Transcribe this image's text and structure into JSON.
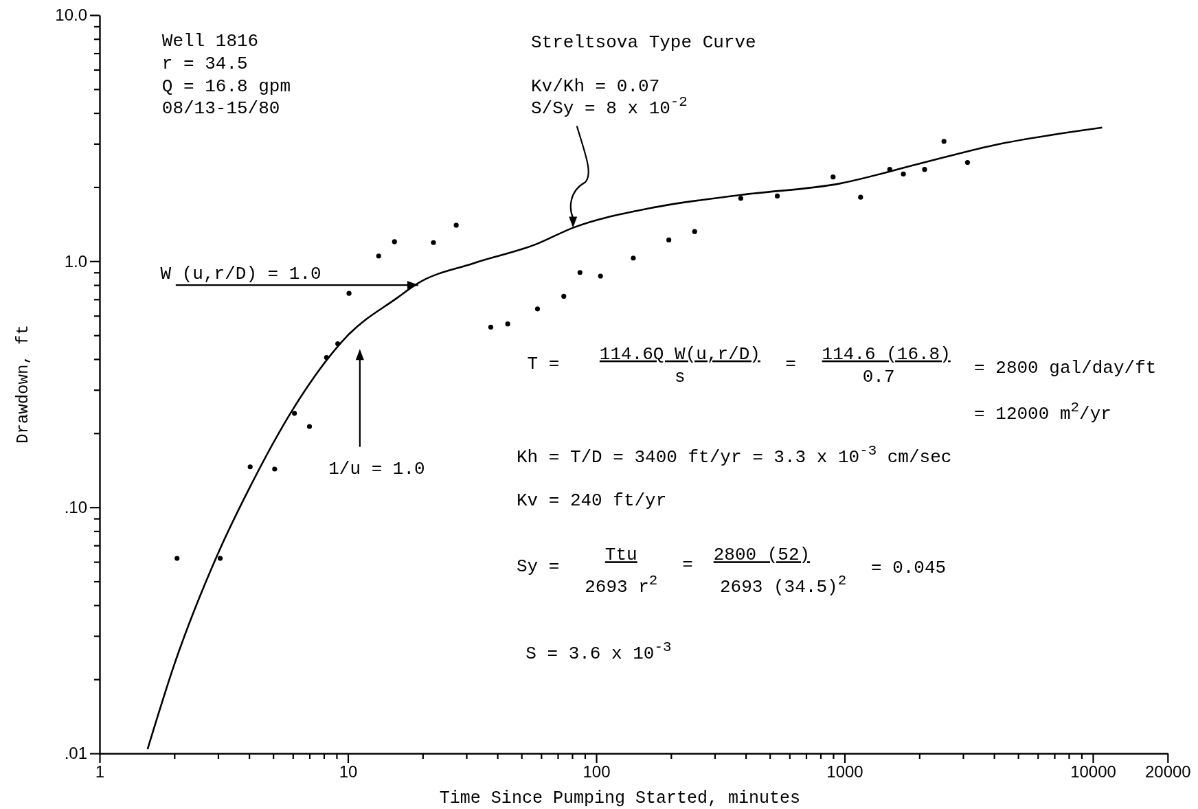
{
  "chart_data": {
    "type": "scatter",
    "xlabel": "Time Since Pumping Started, minutes",
    "ylabel": "Drawdown, ft",
    "log": "xy",
    "xlim": [
      1,
      20000
    ],
    "ylim": [
      0.01,
      10
    ],
    "xticks": [
      1,
      {
        "value": 2,
        "label": null
      },
      {
        "value": 3,
        "label": null
      },
      {
        "value": 4,
        "label": null
      },
      {
        "value": 5,
        "label": null
      },
      {
        "value": 6,
        "label": null
      },
      {
        "value": 7,
        "label": null
      },
      {
        "value": 8,
        "label": null
      },
      {
        "value": 9,
        "label": null
      },
      10,
      {
        "value": 20,
        "label": null
      },
      {
        "value": 30,
        "label": null
      },
      {
        "value": 40,
        "label": null
      },
      {
        "value": 50,
        "label": null
      },
      {
        "value": 60,
        "label": null
      },
      {
        "value": 70,
        "label": null
      },
      {
        "value": 80,
        "label": null
      },
      {
        "value": 90,
        "label": null
      },
      100,
      {
        "value": 200,
        "label": null
      },
      {
        "value": 300,
        "label": null
      },
      {
        "value": 400,
        "label": null
      },
      {
        "value": 500,
        "label": null
      },
      {
        "value": 600,
        "label": null
      },
      {
        "value": 700,
        "label": null
      },
      {
        "value": 800,
        "label": null
      },
      {
        "value": 900,
        "label": null
      },
      1000,
      {
        "value": 2000,
        "label": null
      },
      {
        "value": 3000,
        "label": null
      },
      {
        "value": 4000,
        "label": null
      },
      {
        "value": 5000,
        "label": null
      },
      {
        "value": 6000,
        "label": null
      },
      {
        "value": 7000,
        "label": null
      },
      {
        "value": 8000,
        "label": null
      },
      {
        "value": 9000,
        "label": null
      },
      10000,
      20000
    ],
    "yticks": [
      {
        "value": 0.01,
        "label": ".01"
      },
      {
        "value": 0.02,
        "label": null
      },
      {
        "value": 0.03,
        "label": null
      },
      {
        "value": 0.04,
        "label": null
      },
      {
        "value": 0.05,
        "label": null
      },
      {
        "value": 0.06,
        "label": null
      },
      {
        "value": 0.07,
        "label": null
      },
      {
        "value": 0.08,
        "label": null
      },
      {
        "value": 0.09,
        "label": null
      },
      {
        "value": 0.1,
        "label": ".10"
      },
      {
        "value": 0.2,
        "label": null
      },
      {
        "value": 0.3,
        "label": null
      },
      {
        "value": 0.4,
        "label": null
      },
      {
        "value": 0.5,
        "label": null
      },
      {
        "value": 0.6,
        "label": null
      },
      {
        "value": 0.7,
        "label": null
      },
      {
        "value": 0.8,
        "label": null
      },
      {
        "value": 0.9,
        "label": null
      },
      {
        "value": 1,
        "label": "1.0"
      },
      {
        "value": 2,
        "label": null
      },
      {
        "value": 3,
        "label": null
      },
      {
        "value": 4,
        "label": null
      },
      {
        "value": 5,
        "label": null
      },
      {
        "value": 6,
        "label": null
      },
      {
        "value": 7,
        "label": null
      },
      {
        "value": 8,
        "label": null
      },
      {
        "value": 9,
        "label": null
      },
      {
        "value": 10,
        "label": "10.0"
      }
    ],
    "series": [
      {
        "type": "scatter",
        "color": "#000000",
        "marker": "circle",
        "x": [
          2.05,
          3.06,
          4.04,
          5.07,
          6.09,
          7.0,
          8.2,
          9.1,
          10.1,
          13.3,
          15.4,
          22.1,
          27.3,
          37.6,
          44,
          58,
          74,
          86,
          104,
          141,
          196,
          249,
          382,
          536,
          899,
          1160,
          1520,
          1725,
          2100,
          2513,
          3126
        ],
        "values": [
          0.062,
          0.062,
          0.146,
          0.143,
          0.241,
          0.213,
          0.406,
          0.462,
          0.74,
          1.05,
          1.2,
          1.19,
          1.4,
          0.54,
          0.556,
          0.64,
          0.72,
          0.9,
          0.87,
          1.03,
          1.22,
          1.32,
          1.8,
          1.84,
          2.2,
          1.82,
          2.36,
          2.26,
          2.36,
          3.07,
          2.52
        ]
      },
      {
        "type": "line",
        "color": "#000000",
        "line_style": "solid",
        "x": [
          1.56,
          2,
          3,
          4,
          6,
          10,
          15.8,
          19,
          32,
          57,
          81,
          164,
          384,
          960,
          1970,
          3990,
          10900
        ],
        "values": [
          0.0104,
          0.023,
          0.065,
          0.119,
          0.25,
          0.5,
          0.71,
          0.81,
          0.98,
          1.17,
          1.37,
          1.64,
          1.86,
          2.07,
          2.48,
          2.96,
          3.49
        ]
      }
    ],
    "annotations": [
      "Well 1816",
      "r = 34.5",
      "Q = 16.8 gpm",
      "08/13-15/80",
      "Streltsova Type Curve",
      "Kv/Kh = 0.07",
      "S/Sy = 8 x 10$^{-2}$",
      {
        "text": "W (u,r/D) = 1.0",
        "x": 19.2,
        "y": 0.8
      },
      "1/u = 1.0",
      "T =",
      "114.6Q W(u,r/D)",
      "s",
      "=",
      "114.6 (16.8)",
      "0.7",
      "= 2800 gal/day/ft",
      "= 12000 m$^{2}$/yr",
      "Kh = T/D = 3400 ft/yr = 3.3 x 10$^{-3}$ cm/sec",
      "Kv = 240 ft/yr",
      "Sy =",
      "Ttu",
      "2693 r$^{2}$",
      "=",
      "2800 (52)",
      "2693 (34.5)$^{2}$",
      "= 0.045",
      "S = 3.6 x 10$^{-3}$"
    ]
  }
}
